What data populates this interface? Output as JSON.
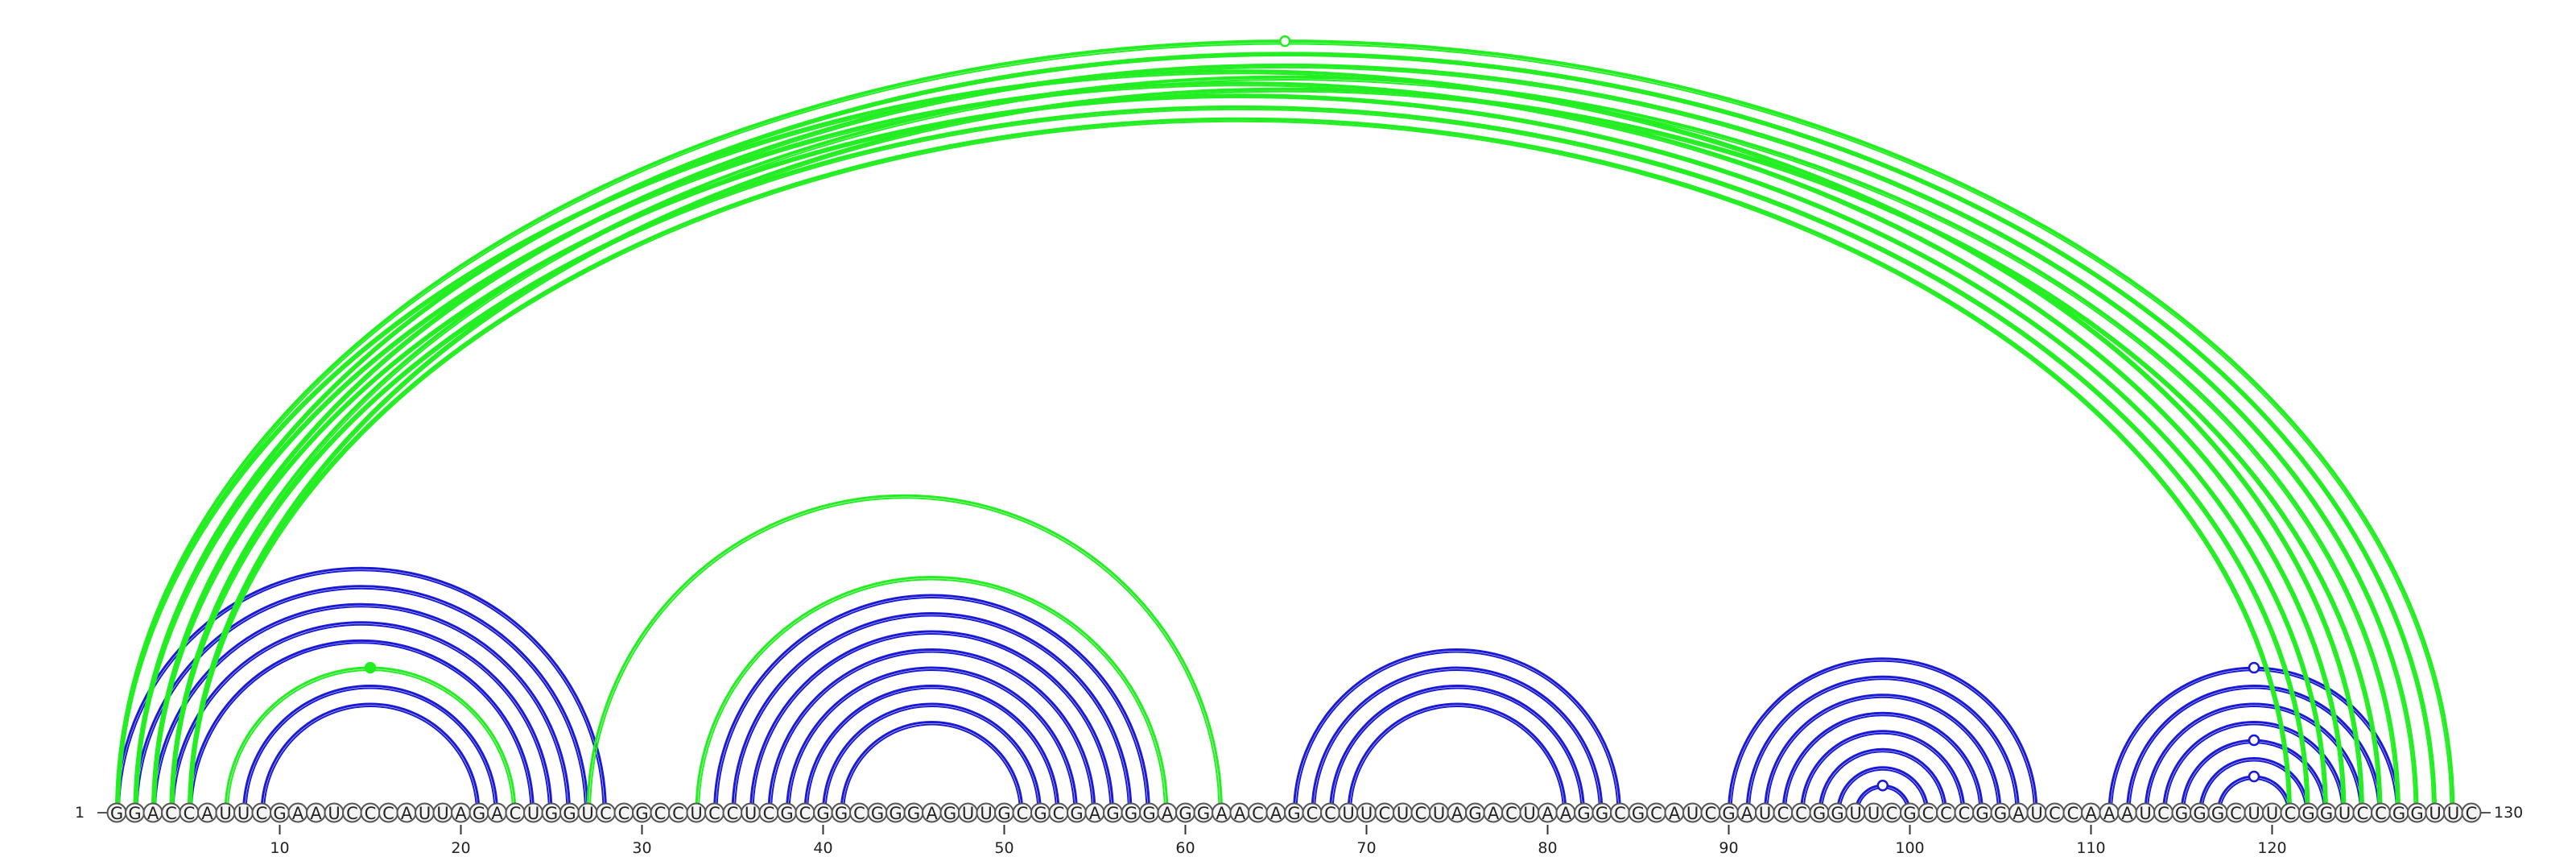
{
  "sequence": "GGACCAUUCGAAUCCCAUUAGACUGGUCCGCCUCCUCGCGGCGGGAGUUGCGCGAGGGAGGAACAGCCUUCUCUAGACUAAGGCGCAUCGAUCCGGUUCGCCCGGAUCCAAAUCGGGCUUCGGUCCGGUUC",
  "start_label": "1",
  "end_label": "130",
  "tick_labels": [
    "10",
    "20",
    "30",
    "40",
    "50",
    "60",
    "70",
    "80",
    "90",
    "100",
    "110",
    "120"
  ],
  "colors": {
    "blue": "#1a1ad6",
    "green": "#22ee22"
  },
  "arc_groups": [
    {
      "color": "blue",
      "from": 1,
      "to": 28,
      "count": 1,
      "pairs": [
        [
          1,
          28
        ]
      ]
    },
    {
      "color": "blue",
      "from": 2,
      "to": 27,
      "count": 1,
      "pairs": [
        [
          2,
          27
        ]
      ]
    },
    {
      "color": "blue",
      "from": 3,
      "to": 26,
      "count": 1,
      "pairs": [
        [
          3,
          26
        ]
      ]
    },
    {
      "color": "blue",
      "from": 4,
      "to": 25,
      "count": 1,
      "pairs": [
        [
          4,
          25
        ]
      ]
    },
    {
      "color": "blue",
      "from": 5,
      "to": 24,
      "count": 1,
      "pairs": [
        [
          5,
          24
        ]
      ]
    },
    {
      "color": "green",
      "from": 7,
      "to": 23,
      "count": 1,
      "pairs": [
        [
          7,
          23
        ]
      ]
    },
    {
      "color": "blue",
      "from": 8,
      "to": 22,
      "count": 1,
      "pairs": [
        [
          8,
          22
        ]
      ]
    },
    {
      "color": "blue",
      "from": 9,
      "to": 21,
      "count": 1,
      "pairs": [
        [
          9,
          21
        ]
      ]
    },
    {
      "color": "green",
      "from": 27,
      "to": 62,
      "count": 1,
      "pairs": [
        [
          27,
          62
        ]
      ]
    },
    {
      "color": "green",
      "from": 33,
      "to": 59,
      "count": 1,
      "pairs": [
        [
          33,
          59
        ]
      ]
    },
    {
      "color": "blue",
      "from": 34,
      "to": 58,
      "count": 1,
      "pairs": [
        [
          34,
          58
        ]
      ]
    },
    {
      "color": "blue",
      "from": 35,
      "to": 57,
      "count": 1,
      "pairs": [
        [
          35,
          57
        ]
      ]
    },
    {
      "color": "blue",
      "from": 36,
      "to": 56,
      "count": 1,
      "pairs": [
        [
          36,
          56
        ]
      ]
    },
    {
      "color": "blue",
      "from": 37,
      "to": 55,
      "count": 1,
      "pairs": [
        [
          37,
          55
        ]
      ]
    },
    {
      "color": "blue",
      "from": 38,
      "to": 54,
      "count": 1,
      "pairs": [
        [
          38,
          54
        ]
      ]
    },
    {
      "color": "blue",
      "from": 39,
      "to": 53,
      "count": 1,
      "pairs": [
        [
          39,
          53
        ]
      ]
    },
    {
      "color": "blue",
      "from": 40,
      "to": 52,
      "count": 1,
      "pairs": [
        [
          40,
          52
        ]
      ]
    },
    {
      "color": "blue",
      "from": 41,
      "to": 51,
      "count": 1,
      "pairs": [
        [
          41,
          51
        ]
      ]
    },
    {
      "color": "blue",
      "from": 66,
      "to": 84,
      "count": 1,
      "pairs": [
        [
          66,
          84
        ]
      ]
    },
    {
      "color": "blue",
      "from": 67,
      "to": 83,
      "count": 1,
      "pairs": [
        [
          67,
          83
        ]
      ]
    },
    {
      "color": "blue",
      "from": 68,
      "to": 82,
      "count": 1,
      "pairs": [
        [
          68,
          82
        ]
      ]
    },
    {
      "color": "blue",
      "from": 69,
      "to": 81,
      "count": 1,
      "pairs": [
        [
          69,
          81
        ]
      ]
    },
    {
      "color": "blue",
      "from": 90,
      "to": 107,
      "count": 1,
      "pairs": [
        [
          90,
          107
        ]
      ]
    },
    {
      "color": "blue",
      "from": 91,
      "to": 106,
      "count": 1,
      "pairs": [
        [
          91,
          106
        ]
      ]
    },
    {
      "color": "blue",
      "from": 92,
      "to": 105,
      "count": 1,
      "pairs": [
        [
          92,
          105
        ]
      ]
    },
    {
      "color": "blue",
      "from": 93,
      "to": 104,
      "count": 1,
      "pairs": [
        [
          93,
          104
        ]
      ]
    },
    {
      "color": "blue",
      "from": 94,
      "to": 103,
      "count": 1,
      "pairs": [
        [
          94,
          103
        ]
      ]
    },
    {
      "color": "blue",
      "from": 95,
      "to": 102,
      "count": 1,
      "pairs": [
        [
          95,
          102
        ]
      ]
    },
    {
      "color": "blue",
      "from": 96,
      "to": 101,
      "count": 1,
      "pairs": [
        [
          96,
          101
        ]
      ]
    },
    {
      "color": "blue",
      "from": 97,
      "to": 100,
      "count": 1,
      "pairs": [
        [
          97,
          100
        ]
      ]
    },
    {
      "color": "blue",
      "from": 111,
      "to": 127,
      "count": 1,
      "pairs": [
        [
          111,
          127
        ]
      ]
    },
    {
      "color": "blue",
      "from": 112,
      "to": 126,
      "count": 1,
      "pairs": [
        [
          112,
          126
        ]
      ]
    },
    {
      "color": "blue",
      "from": 113,
      "to": 125,
      "count": 1,
      "pairs": [
        [
          113,
          125
        ]
      ]
    },
    {
      "color": "blue",
      "from": 114,
      "to": 124,
      "count": 1,
      "pairs": [
        [
          114,
          124
        ]
      ]
    },
    {
      "color": "blue",
      "from": 115,
      "to": 123,
      "count": 1,
      "pairs": [
        [
          115,
          123
        ]
      ]
    },
    {
      "color": "blue",
      "from": 116,
      "to": 122,
      "count": 1,
      "pairs": [
        [
          116,
          122
        ]
      ]
    },
    {
      "color": "blue",
      "from": 117,
      "to": 121,
      "count": 1,
      "pairs": [
        [
          117,
          121
        ]
      ]
    },
    {
      "color": "green",
      "from": 1,
      "to": 130,
      "count": 1,
      "pairs": [
        [
          1,
          130
        ]
      ]
    },
    {
      "color": "green",
      "from": 2,
      "to": 129,
      "count": 1,
      "pairs": [
        [
          2,
          129
        ]
      ]
    },
    {
      "color": "green",
      "from": 3,
      "to": 128,
      "count": 1,
      "pairs": [
        [
          3,
          128
        ]
      ]
    },
    {
      "color": "green",
      "from": 4,
      "to": 127,
      "count": 1,
      "pairs": [
        [
          4,
          127
        ]
      ]
    },
    {
      "color": "green",
      "from": 5,
      "to": 126,
      "count": 1,
      "pairs": [
        [
          5,
          126
        ]
      ]
    },
    {
      "color": "green",
      "from": 1,
      "to": 125,
      "count": 1,
      "pairs": [
        [
          1,
          125
        ]
      ]
    },
    {
      "color": "green",
      "from": 2,
      "to": 124,
      "count": 1,
      "pairs": [
        [
          2,
          124
        ]
      ]
    },
    {
      "color": "green",
      "from": 3,
      "to": 123,
      "count": 1,
      "pairs": [
        [
          3,
          123
        ]
      ]
    },
    {
      "color": "green",
      "from": 4,
      "to": 122,
      "count": 1,
      "pairs": [
        [
          4,
          122
        ]
      ]
    },
    {
      "color": "green",
      "from": 5,
      "to": 121,
      "count": 1,
      "pairs": [
        [
          5,
          121
        ]
      ]
    }
  ],
  "markers": [
    {
      "color": "green",
      "filled": false,
      "arc": 37
    },
    {
      "color": "green",
      "filled": true,
      "arc": 5
    },
    {
      "color": "blue",
      "filled": false,
      "arc": 29
    },
    {
      "color": "blue",
      "filled": false,
      "arc": 30
    },
    {
      "color": "blue",
      "filled": false,
      "arc": 34
    },
    {
      "color": "blue",
      "filled": false,
      "arc": 36
    }
  ]
}
